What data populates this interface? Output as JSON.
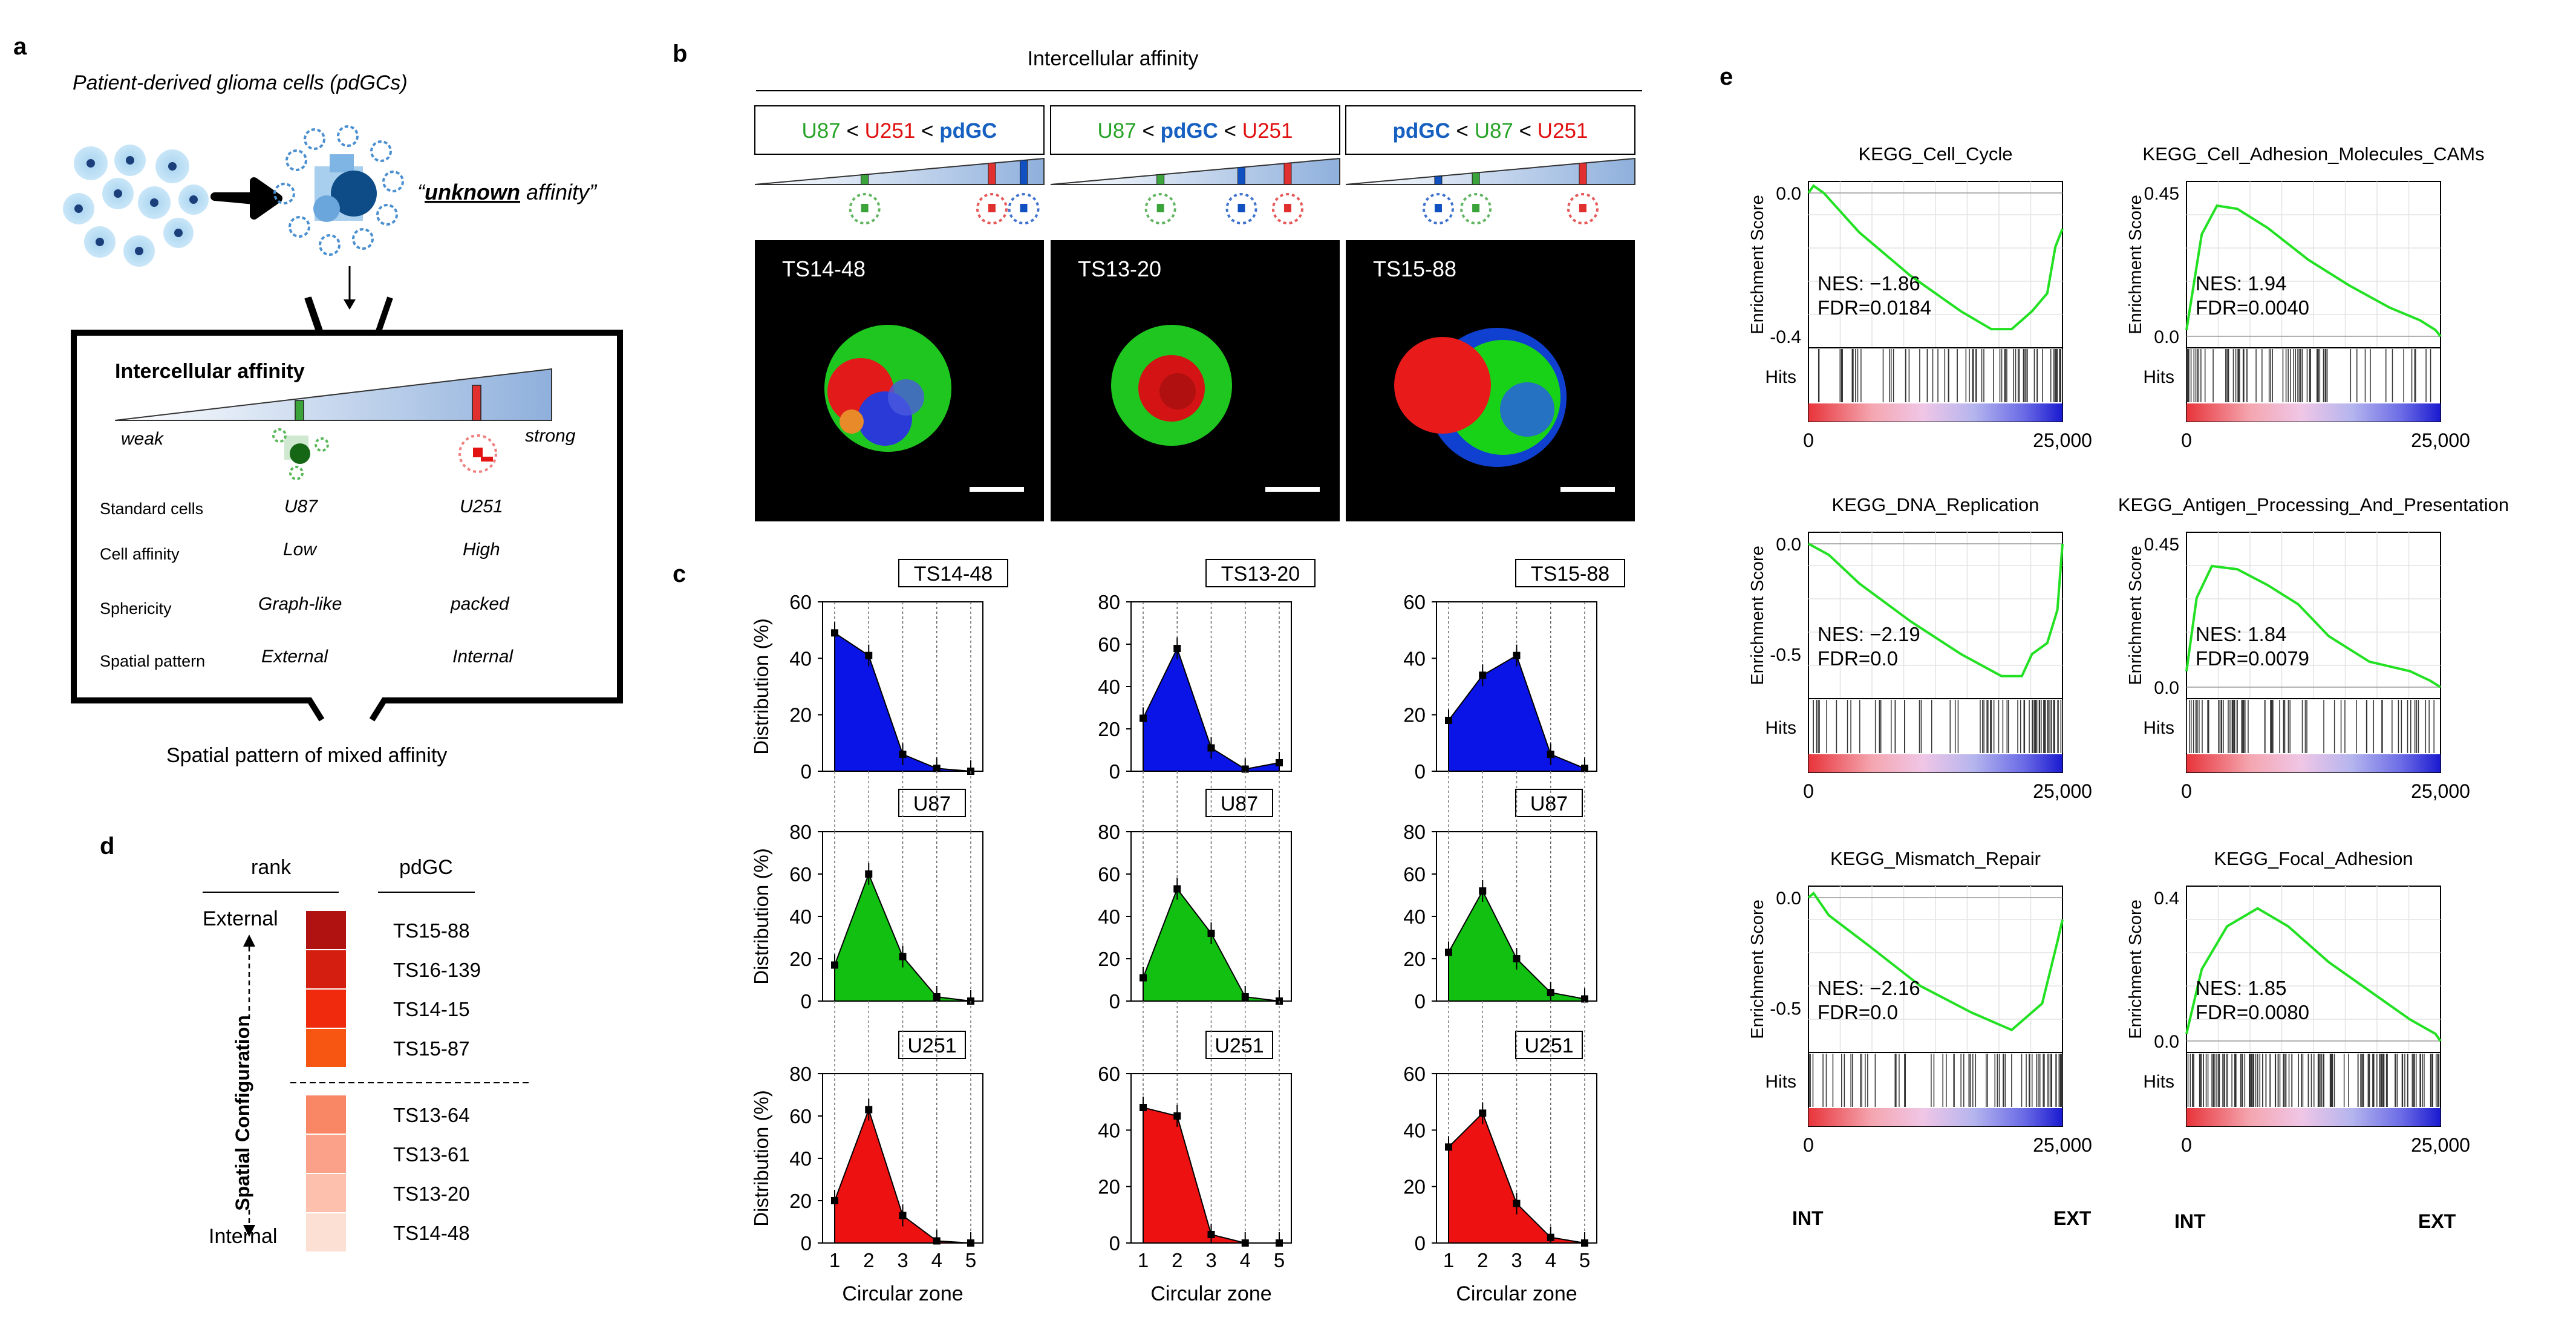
{
  "panel_labels": {
    "a": "a",
    "b": "b",
    "c": "c",
    "d": "d",
    "e": "e"
  },
  "panel_a": {
    "title": "Patient-derived glioma cells (pdGCs)",
    "unknown_word": "unknown",
    "unknown_rest": " affinity”",
    "unknown_open": "“",
    "box_title": "Intercellular affinity",
    "weak": "weak",
    "strong": "strong",
    "rows": [
      {
        "label": "Standard cells",
        "u87": "U87",
        "u251": "U251"
      },
      {
        "label": "Cell affinity",
        "u87": "Low",
        "u251": "High"
      },
      {
        "label": "Sphericity",
        "u87": "Graph-like",
        "u251": "packed"
      },
      {
        "label": "Spatial pattern",
        "u87": "External",
        "u251": "Internal"
      }
    ],
    "footer": "Spatial pattern of mixed affinity"
  },
  "panel_b": {
    "header": "Intercellular affinity",
    "boxes": [
      {
        "parts": [
          [
            "U87",
            "#27a327"
          ],
          [
            " < ",
            "#000"
          ],
          [
            "U251",
            "#e01010"
          ],
          [
            " < ",
            "#000"
          ],
          [
            "pdGC",
            "#1560c0"
          ]
        ],
        "sample": "TS14-48"
      },
      {
        "parts": [
          [
            "U87",
            "#27a327"
          ],
          [
            " < ",
            "#000"
          ],
          [
            "pdGC",
            "#1560c0"
          ],
          [
            " < ",
            "#000"
          ],
          [
            "U251",
            "#e01010"
          ]
        ],
        "sample": "TS13-20"
      },
      {
        "parts": [
          [
            "pdGC",
            "#1560c0"
          ],
          [
            " < ",
            "#000"
          ],
          [
            "U87",
            "#27a327"
          ],
          [
            " < ",
            "#000"
          ],
          [
            "U251",
            "#e01010"
          ]
        ],
        "sample": "TS15-88"
      }
    ]
  },
  "panel_d": {
    "col_rank": "rank",
    "col_pdgc": "pdGC",
    "external": "External",
    "internal": "Internal",
    "axis_label": "Spatial Configuration",
    "rows": [
      {
        "name": "TS15-88",
        "color": "#b01212"
      },
      {
        "name": "TS16-139",
        "color": "#d41e10"
      },
      {
        "name": "TS14-15",
        "color": "#f02a0c"
      },
      {
        "name": "TS15-87",
        "color": "#f75512"
      },
      {
        "name": "TS13-64",
        "color": "#f98766"
      },
      {
        "name": "TS13-61",
        "color": "#fba189"
      },
      {
        "name": "TS13-20",
        "color": "#fcc0ad"
      },
      {
        "name": "TS14-48",
        "color": "#fde0d4"
      }
    ]
  },
  "chart_data": [
    {
      "type": "area",
      "panel": "c",
      "label": "TS14-48",
      "x": [
        1,
        2,
        3,
        4,
        5
      ],
      "values": [
        49,
        41,
        6,
        1,
        0
      ],
      "ylim": [
        0,
        60
      ],
      "yticks": [
        0,
        20,
        40,
        60
      ],
      "color": "#0a14e6",
      "ylabel": "Distribution (%)",
      "xlabel": "",
      "row": 0,
      "col": 0
    },
    {
      "type": "area",
      "panel": "c",
      "label": "TS13-20",
      "x": [
        1,
        2,
        3,
        4,
        5
      ],
      "values": [
        25,
        58,
        11,
        1,
        4
      ],
      "ylim": [
        0,
        80
      ],
      "yticks": [
        0,
        20,
        40,
        60,
        80
      ],
      "color": "#0a14e6",
      "ylabel": "",
      "xlabel": "",
      "row": 0,
      "col": 1
    },
    {
      "type": "area",
      "panel": "c",
      "label": "TS15-88",
      "x": [
        1,
        2,
        3,
        4,
        5
      ],
      "values": [
        18,
        34,
        41,
        6,
        1
      ],
      "ylim": [
        0,
        60
      ],
      "yticks": [
        0,
        20,
        40,
        60
      ],
      "color": "#0a14e6",
      "ylabel": "",
      "xlabel": "",
      "row": 0,
      "col": 2
    },
    {
      "type": "area",
      "panel": "c",
      "label": "U87",
      "x": [
        1,
        2,
        3,
        4,
        5
      ],
      "values": [
        17,
        60,
        21,
        2,
        0
      ],
      "ylim": [
        0,
        80
      ],
      "yticks": [
        0,
        20,
        40,
        60,
        80
      ],
      "color": "#12c012",
      "ylabel": "Distribution (%)",
      "xlabel": "",
      "row": 1,
      "col": 0
    },
    {
      "type": "area",
      "panel": "c",
      "label": "U87",
      "x": [
        1,
        2,
        3,
        4,
        5
      ],
      "values": [
        11,
        53,
        32,
        2,
        0
      ],
      "ylim": [
        0,
        80
      ],
      "yticks": [
        0,
        20,
        40,
        60,
        80
      ],
      "color": "#12c012",
      "ylabel": "",
      "xlabel": "",
      "row": 1,
      "col": 1
    },
    {
      "type": "area",
      "panel": "c",
      "label": "U87",
      "x": [
        1,
        2,
        3,
        4,
        5
      ],
      "values": [
        23,
        52,
        20,
        4,
        1
      ],
      "ylim": [
        0,
        80
      ],
      "yticks": [
        0,
        20,
        40,
        60,
        80
      ],
      "color": "#12c012",
      "ylabel": "",
      "xlabel": "",
      "row": 1,
      "col": 2
    },
    {
      "type": "area",
      "panel": "c",
      "label": "U251",
      "x": [
        1,
        2,
        3,
        4,
        5
      ],
      "values": [
        20,
        63,
        13,
        1,
        0
      ],
      "ylim": [
        0,
        80
      ],
      "yticks": [
        0,
        20,
        40,
        60,
        80
      ],
      "color": "#ee1111",
      "ylabel": "Distribution (%)",
      "xlabel": "Circular zone",
      "row": 2,
      "col": 0
    },
    {
      "type": "area",
      "panel": "c",
      "label": "U251",
      "x": [
        1,
        2,
        3,
        4,
        5
      ],
      "values": [
        48,
        45,
        3,
        0,
        0
      ],
      "ylim": [
        0,
        60
      ],
      "yticks": [
        0,
        20,
        40,
        60
      ],
      "color": "#ee1111",
      "ylabel": "",
      "xlabel": "Circular zone",
      "row": 2,
      "col": 1
    },
    {
      "type": "area",
      "panel": "c",
      "label": "U251",
      "x": [
        1,
        2,
        3,
        4,
        5
      ],
      "values": [
        34,
        46,
        14,
        2,
        0
      ],
      "ylim": [
        0,
        60
      ],
      "yticks": [
        0,
        20,
        40,
        60
      ],
      "color": "#ee1111",
      "ylabel": "",
      "xlabel": "Circular zone",
      "row": 2,
      "col": 2
    },
    {
      "type": "line",
      "panel": "e",
      "title": "KEGG_Cell_Cycle",
      "nes": "NES: −1.86",
      "fdr": "FDR=0.0184",
      "ylim": [
        -0.4,
        0.0
      ],
      "ytick_labels": [
        "0.0",
        "-0.4"
      ],
      "x": [
        0,
        25000
      ],
      "xtick_labels": [
        "0",
        "25,000"
      ],
      "ylabel": "Enrichment Score",
      "hits_label": "Hits",
      "curve": [
        [
          0,
          0.0
        ],
        [
          500,
          0.02
        ],
        [
          1500,
          0.0
        ],
        [
          5000,
          -0.11
        ],
        [
          10000,
          -0.23
        ],
        [
          15000,
          -0.33
        ],
        [
          18000,
          -0.38
        ],
        [
          20000,
          -0.38
        ],
        [
          22000,
          -0.33
        ],
        [
          23500,
          -0.28
        ],
        [
          24300,
          -0.15
        ],
        [
          25000,
          -0.1
        ]
      ],
      "hits_zone": "right",
      "row": 0,
      "col": 0
    },
    {
      "type": "line",
      "panel": "e",
      "title": "KEGG_Cell_Adhesion_Molecules_CAMs",
      "nes": "NES: 1.94",
      "fdr": "FDR=0.0040",
      "ylim": [
        0.0,
        0.45
      ],
      "ytick_labels": [
        "0.45",
        "0.0"
      ],
      "x": [
        0,
        25000
      ],
      "xtick_labels": [
        "0",
        "25,000"
      ],
      "ylabel": "Enrichment Score",
      "hits_label": "Hits",
      "curve": [
        [
          0,
          0.02
        ],
        [
          1500,
          0.32
        ],
        [
          3000,
          0.41
        ],
        [
          5000,
          0.4
        ],
        [
          8000,
          0.34
        ],
        [
          12000,
          0.24
        ],
        [
          16000,
          0.16
        ],
        [
          20000,
          0.09
        ],
        [
          23000,
          0.05
        ],
        [
          24500,
          0.02
        ],
        [
          25000,
          0.0
        ]
      ],
      "hits_zone": "left",
      "row": 0,
      "col": 1
    },
    {
      "type": "line",
      "panel": "e",
      "title": "KEGG_DNA_Replication",
      "nes": "NES: −2.19",
      "fdr": "FDR=0.0",
      "ylim": [
        -0.65,
        0.0
      ],
      "ytick_labels": [
        "0.0",
        "-0.5"
      ],
      "x": [
        0,
        25000
      ],
      "xtick_labels": [
        "0",
        "25,000"
      ],
      "ylabel": "Enrichment Score",
      "hits_label": "Hits",
      "curve": [
        [
          0,
          0.0
        ],
        [
          400,
          -0.01
        ],
        [
          2000,
          -0.05
        ],
        [
          5000,
          -0.18
        ],
        [
          10000,
          -0.35
        ],
        [
          15000,
          -0.5
        ],
        [
          19000,
          -0.6
        ],
        [
          21000,
          -0.6
        ],
        [
          22000,
          -0.5
        ],
        [
          23500,
          -0.45
        ],
        [
          24500,
          -0.3
        ],
        [
          25000,
          0.0
        ]
      ],
      "hits_zone": "right",
      "row": 1,
      "col": 0
    },
    {
      "type": "line",
      "panel": "e",
      "title": "KEGG_Antigen_Processing_And_Presentation",
      "nes": "NES: 1.84",
      "fdr": "FDR=0.0079",
      "ylim": [
        0.0,
        0.45
      ],
      "ytick_labels": [
        "0.45",
        "0.0"
      ],
      "x": [
        0,
        25000
      ],
      "xtick_labels": [
        "0",
        "25,000"
      ],
      "ylabel": "Enrichment Score",
      "hits_label": "Hits",
      "curve": [
        [
          0,
          0.05
        ],
        [
          1000,
          0.28
        ],
        [
          2500,
          0.38
        ],
        [
          5000,
          0.37
        ],
        [
          8000,
          0.32
        ],
        [
          11000,
          0.26
        ],
        [
          14000,
          0.16
        ],
        [
          18000,
          0.08
        ],
        [
          22000,
          0.05
        ],
        [
          24000,
          0.02
        ],
        [
          25000,
          0.0
        ]
      ],
      "hits_zone": "left",
      "row": 1,
      "col": 1
    },
    {
      "type": "line",
      "panel": "e",
      "title": "KEGG_Mismatch_Repair",
      "nes": "NES: −2.16",
      "fdr": "FDR=0.0",
      "ylim": [
        -0.65,
        0.0
      ],
      "ytick_labels": [
        "0.0",
        "-0.5"
      ],
      "x": [
        0,
        25000
      ],
      "xtick_labels": [
        "0",
        "25,000"
      ],
      "ylabel": "Enrichment Score",
      "hits_label": "Hits",
      "curve": [
        [
          0,
          0.0
        ],
        [
          500,
          0.02
        ],
        [
          2000,
          -0.08
        ],
        [
          6000,
          -0.22
        ],
        [
          11000,
          -0.4
        ],
        [
          16000,
          -0.52
        ],
        [
          20000,
          -0.6
        ],
        [
          21500,
          -0.54
        ],
        [
          23000,
          -0.48
        ],
        [
          24500,
          -0.2
        ],
        [
          25000,
          -0.1
        ]
      ],
      "hits_zone": "right",
      "row": 2,
      "col": 0
    },
    {
      "type": "line",
      "panel": "e",
      "title": "KEGG_Focal_Adhesion",
      "nes": "NES: 1.85",
      "fdr": "FDR=0.0080",
      "ylim": [
        0.0,
        0.4
      ],
      "ytick_labels": [
        "0.4",
        "0.0"
      ],
      "x": [
        0,
        25000
      ],
      "xtick_labels": [
        "0",
        "25,000"
      ],
      "ylabel": "Enrichment Score",
      "hits_label": "Hits",
      "curve": [
        [
          0,
          0.02
        ],
        [
          1500,
          0.2
        ],
        [
          4000,
          0.32
        ],
        [
          7000,
          0.37
        ],
        [
          10000,
          0.32
        ],
        [
          14000,
          0.22
        ],
        [
          18000,
          0.14
        ],
        [
          22000,
          0.06
        ],
        [
          24500,
          0.02
        ],
        [
          25000,
          0.0
        ]
      ],
      "hits_zone": "dense",
      "row": 2,
      "col": 1
    }
  ],
  "panel_e_axis": {
    "int": "INT",
    "ext": "EXT"
  }
}
